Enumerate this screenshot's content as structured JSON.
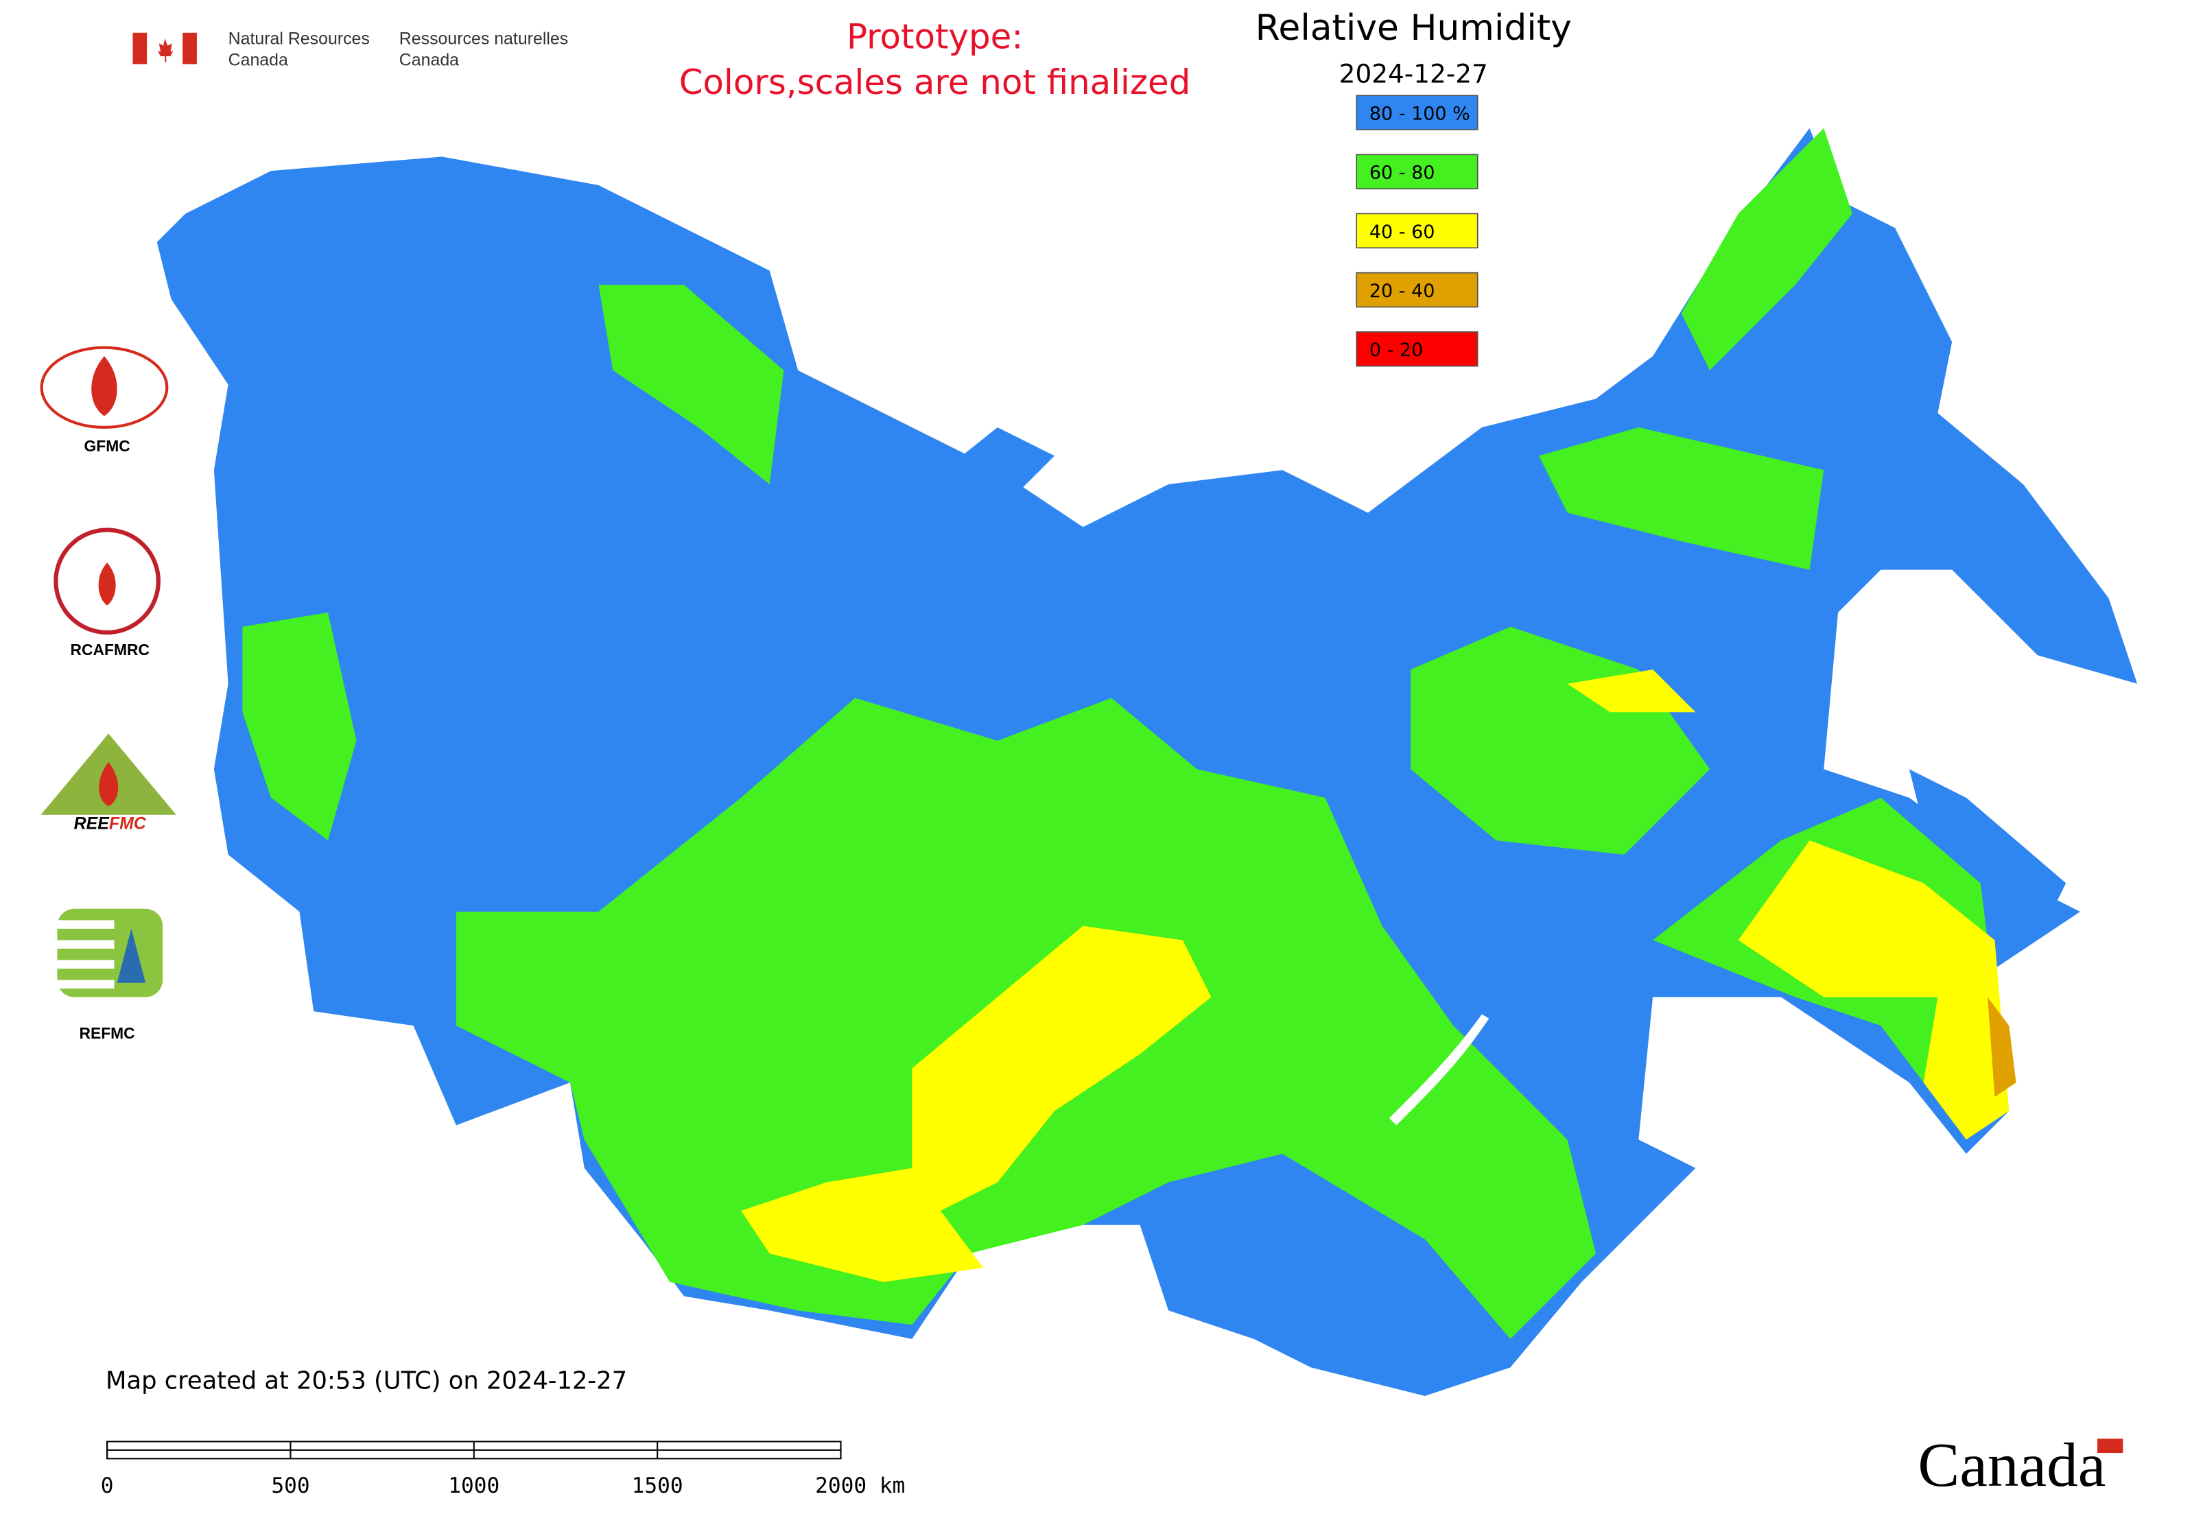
{
  "header": {
    "agency_en": [
      "Natural Resources",
      "Canada"
    ],
    "agency_fr": [
      "Ressources naturelles",
      "Canada"
    ],
    "notice": [
      "Prototype:",
      "Colors,scales are not finalized"
    ]
  },
  "map": {
    "title": "Relative Humidity",
    "date": "2024-12-27",
    "legend": [
      {
        "label": "80 - 100 %",
        "color": "#2f86f0"
      },
      {
        "label": "60 - 80",
        "color": "#44f020"
      },
      {
        "label": "40 - 60",
        "color": "#ffff00"
      },
      {
        "label": "20 - 40",
        "color": "#e0a000"
      },
      {
        "label": "0 - 20",
        "color": "#ff0000"
      }
    ]
  },
  "logos": [
    "GFMC",
    "RCAFMRC",
    "REFMC"
  ],
  "footer": {
    "created": "Map created at 20:53 (UTC) on 2024-12-27",
    "scale": [
      "0",
      "500",
      "1000",
      "1500",
      "2000 km"
    ],
    "wordmark": "Canada"
  }
}
